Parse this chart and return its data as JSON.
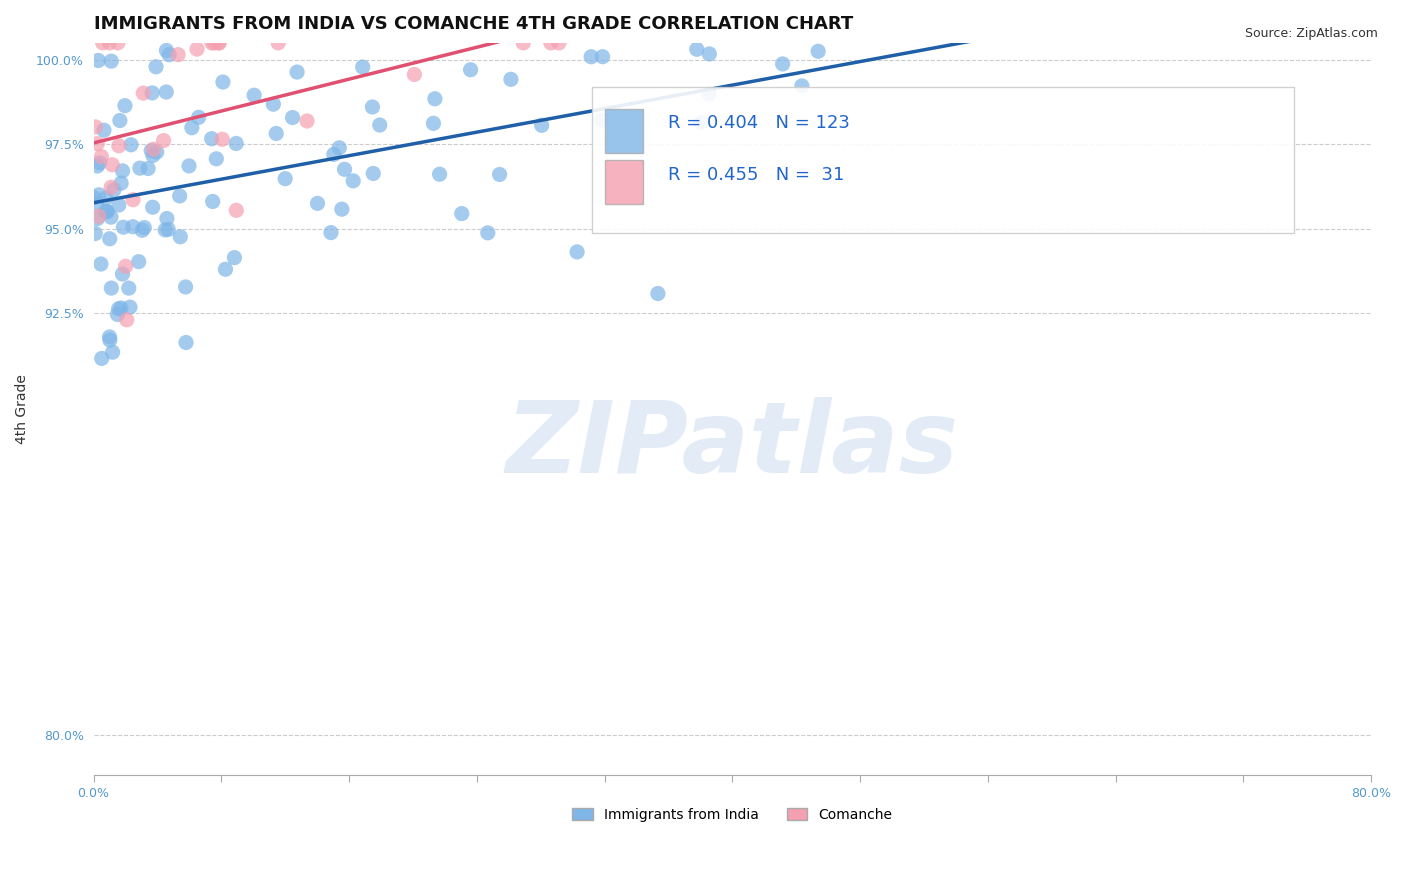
{
  "title": "IMMIGRANTS FROM INDIA VS COMANCHE 4TH GRADE CORRELATION CHART",
  "source_text": "Source: ZipAtlas.com",
  "xlabel": "",
  "ylabel": "4th Grade",
  "xlim": [
    0.0,
    0.8
  ],
  "ylim": [
    0.788,
    1.005
  ],
  "xticks": [
    0.0,
    0.08,
    0.16,
    0.24,
    0.32,
    0.4,
    0.48,
    0.56,
    0.64,
    0.72,
    0.8
  ],
  "xticklabels": [
    "0.0%",
    "",
    "",
    "",
    "",
    "",
    "",
    "",
    "",
    "",
    "80.0%"
  ],
  "yticks": [
    0.8,
    0.925,
    0.95,
    0.975,
    1.0
  ],
  "yticklabels": [
    "80.0%",
    "92.5%",
    "95.0%",
    "97.5%",
    "100.0%"
  ],
  "blue_R": 0.404,
  "blue_N": 123,
  "pink_R": 0.455,
  "pink_N": 31,
  "blue_color": "#7EB6E8",
  "pink_color": "#F4A0B0",
  "blue_line_color": "#1E5FA8",
  "pink_line_color": "#E05070",
  "watermark": "ZIPatlas",
  "watermark_color": "#C8D8F0",
  "legend_label_blue": "Immigrants from India",
  "legend_label_pink": "Comanche",
  "title_fontsize": 13,
  "axis_label_fontsize": 10,
  "tick_fontsize": 9,
  "seed": 42
}
